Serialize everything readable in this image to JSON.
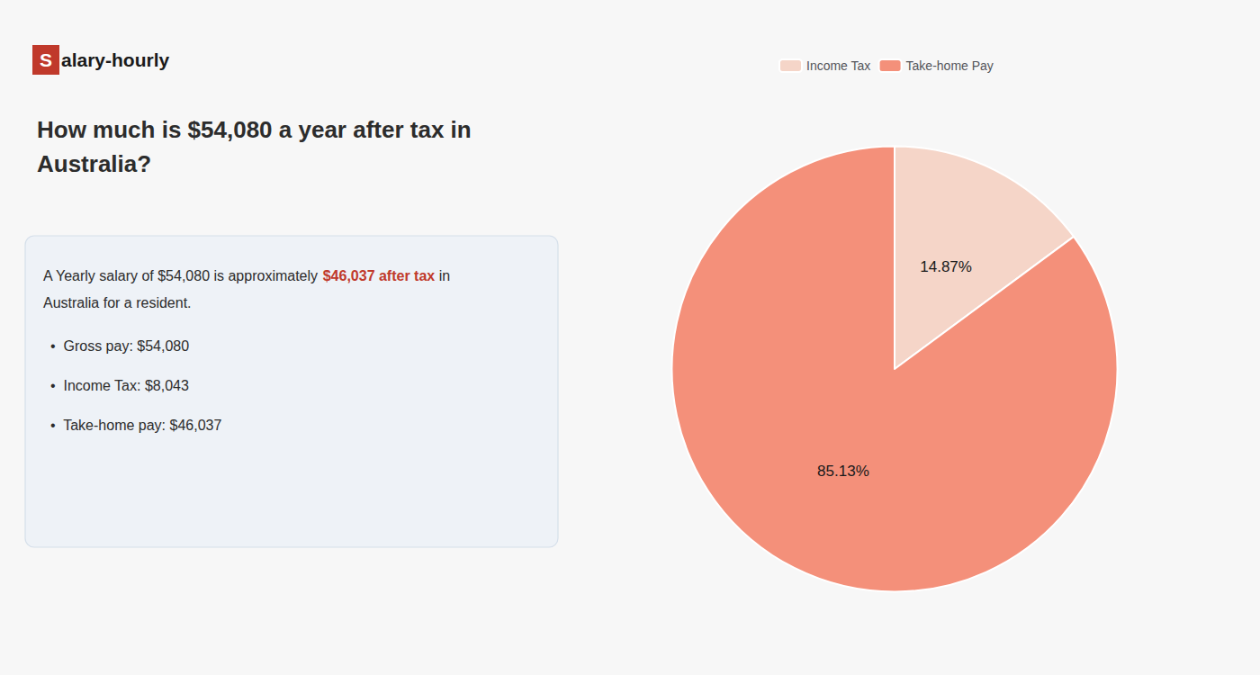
{
  "chart_data": {
    "type": "pie",
    "title": "How much is $54,080 a year after tax in\nAustralia?",
    "categories": [
      "Income Tax",
      "Take-home Pay"
    ],
    "values": [
      14.87,
      85.13
    ],
    "value_labels": [
      "14.87%",
      "85.13%"
    ],
    "colors": [
      "#f5d5c8",
      "#f4907a"
    ],
    "data_labels": true,
    "legend": "top",
    "annotations": [
      [
        {
          "text": "S",
          "color": "#c0392b"
        },
        {
          "text": "alary-hourly"
        }
      ],
      [
        {
          "text": "A Yearly salary of $54,080 is approximately "
        },
        {
          "text": "$46,037 after tax",
          "color": "#c0392b"
        },
        {
          "text": " in"
        }
      ],
      [
        {
          "text": "Australia for a resident."
        }
      ],
      [
        {
          "text": "•  Gross pay: $54,080"
        }
      ],
      [
        {
          "text": "•  Income Tax: $8,043"
        }
      ],
      [
        {
          "text": "•  Take-home pay: $46,037"
        }
      ]
    ]
  }
}
